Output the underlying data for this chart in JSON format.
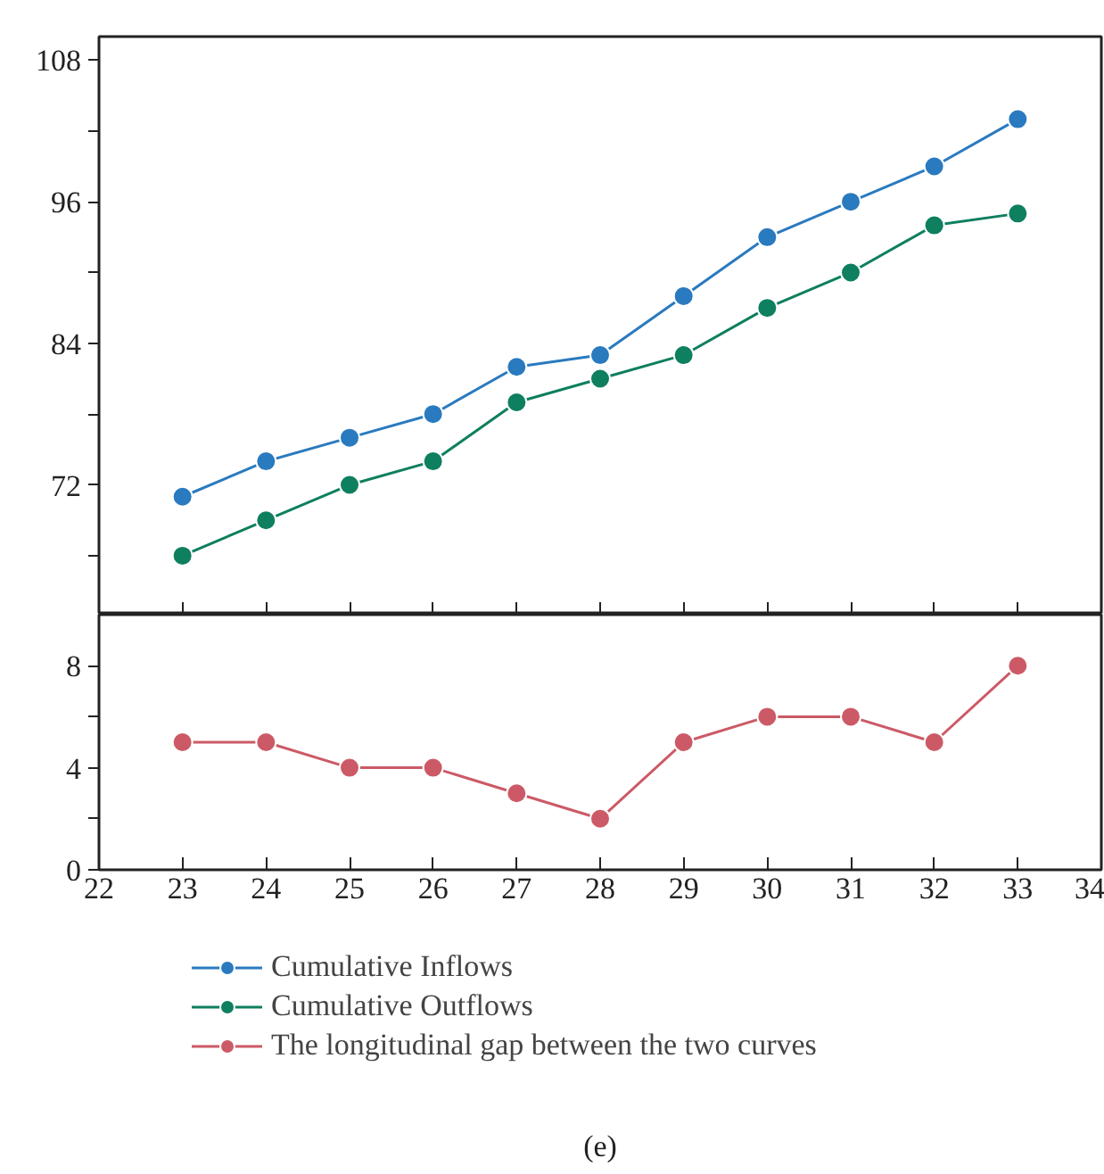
{
  "chart_data": [
    {
      "type": "line",
      "x": [
        23,
        24,
        25,
        26,
        27,
        28,
        29,
        30,
        31,
        32,
        33
      ],
      "series": [
        {
          "name": "Cumulative Inflows",
          "color": "#2a7abf",
          "values": [
            71,
            74,
            76,
            78,
            82,
            83,
            88,
            93,
            96,
            99,
            103
          ]
        },
        {
          "name": "Cumulative Outflows",
          "color": "#0e7f5f",
          "values": [
            66,
            69,
            72,
            74,
            79,
            81,
            83,
            87,
            90,
            94,
            95
          ]
        }
      ],
      "xlim": [
        22,
        34
      ],
      "xticks": [
        23,
        24,
        25,
        26,
        27,
        28,
        29,
        30,
        31,
        32,
        33
      ],
      "ylim": [
        61,
        110
      ],
      "yticks": [
        {
          "value": 66,
          "label": null
        },
        72,
        {
          "value": 78,
          "label": null
        },
        84,
        {
          "value": 90,
          "label": null
        },
        96,
        {
          "value": 102,
          "label": null
        },
        108
      ],
      "tick_labels": "y",
      "marker": "circle",
      "grid": false,
      "legend": "bottom left"
    },
    {
      "type": "line",
      "x": [
        23,
        24,
        25,
        26,
        27,
        28,
        29,
        30,
        31,
        32,
        33
      ],
      "series": [
        {
          "name": "The longitudinal gap between the two curves",
          "color": "#cc5a66",
          "values": [
            5,
            5,
            4,
            4,
            3,
            2,
            5,
            6,
            6,
            5,
            8
          ]
        }
      ],
      "xlim": [
        22,
        34
      ],
      "xticks": [
        22,
        23,
        24,
        25,
        26,
        27,
        28,
        29,
        30,
        31,
        32,
        33,
        34
      ],
      "ylim": [
        0,
        10
      ],
      "yticks": [
        0,
        {
          "value": 2,
          "label": null
        },
        4,
        {
          "value": 6,
          "label": null
        },
        8
      ],
      "marker": "circle",
      "grid": false,
      "legend": "bottom left",
      "annotations": [
        "(e)"
      ]
    }
  ]
}
